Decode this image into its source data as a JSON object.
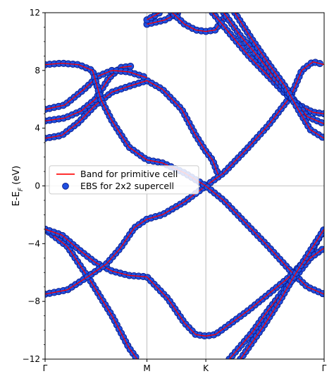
{
  "chart_data": {
    "type": "scatter",
    "ylabel_main": "E-E",
    "ylabel_sub": "F",
    "ylabel_unit": " (eV)",
    "ylim": [
      -12,
      12
    ],
    "yticks": [
      12,
      8,
      4,
      0,
      -4,
      -8,
      -12
    ],
    "xlim": [
      0,
      1
    ],
    "xticks": [
      {
        "label": "Γ",
        "x": 0.0
      },
      {
        "label": "M",
        "x": 0.365
      },
      {
        "label": "K",
        "x": 0.576
      },
      {
        "label": "Γ",
        "x": 1.0
      }
    ],
    "zero_line": 0,
    "legend": {
      "placement": "center-left",
      "entries": [
        {
          "label": "Band for primitive cell",
          "marker": "line",
          "color": "#ff0000"
        },
        {
          "label": "EBS for 2x2 supercell",
          "marker": "circle",
          "color": "#1f3fd6"
        }
      ]
    },
    "colors": {
      "band_line": "#ff0000",
      "ebs_face": "#1f4fe0",
      "ebs_edge": "#0a1a8a"
    },
    "series": [
      {
        "points": [
          [
            0.0,
            -3.0
          ],
          [
            0.08,
            -4.2
          ],
          [
            0.16,
            -6.5
          ],
          [
            0.24,
            -9.0
          ],
          [
            0.3,
            -11.2
          ],
          [
            0.33,
            -12.0
          ]
        ]
      },
      {
        "points": [
          [
            0.0,
            -3.0
          ],
          [
            0.06,
            -3.4
          ],
          [
            0.12,
            -4.4
          ],
          [
            0.18,
            -5.3
          ],
          [
            0.24,
            -5.9
          ],
          [
            0.3,
            -6.2
          ],
          [
            0.365,
            -6.3
          ],
          [
            0.44,
            -7.8
          ],
          [
            0.5,
            -9.5
          ],
          [
            0.54,
            -10.3
          ],
          [
            0.576,
            -10.4
          ],
          [
            0.61,
            -10.3
          ],
          [
            0.66,
            -9.6
          ],
          [
            0.73,
            -8.6
          ],
          [
            0.8,
            -7.5
          ],
          [
            0.87,
            -6.4
          ],
          [
            0.94,
            -5.0
          ],
          [
            1.0,
            -3.0
          ]
        ]
      },
      {
        "points": [
          [
            0.0,
            -7.5
          ],
          [
            0.08,
            -7.2
          ],
          [
            0.16,
            -6.2
          ],
          [
            0.22,
            -5.4
          ],
          [
            0.27,
            -4.3
          ],
          [
            0.32,
            -2.9
          ],
          [
            0.365,
            -2.3
          ],
          [
            0.42,
            -2.0
          ],
          [
            0.5,
            -1.1
          ],
          [
            0.576,
            0.0
          ],
          [
            0.64,
            0.9
          ],
          [
            0.72,
            2.5
          ],
          [
            0.8,
            4.2
          ],
          [
            0.88,
            6.2
          ],
          [
            0.92,
            8.0
          ],
          [
            0.96,
            8.6
          ],
          [
            1.0,
            8.4
          ]
        ]
      },
      {
        "points": [
          [
            0.0,
            3.3
          ],
          [
            0.06,
            3.5
          ],
          [
            0.12,
            4.4
          ],
          [
            0.18,
            5.6
          ],
          [
            0.24,
            6.5
          ],
          [
            0.3,
            6.9
          ],
          [
            0.365,
            7.3
          ],
          [
            0.42,
            6.7
          ],
          [
            0.49,
            5.3
          ],
          [
            0.54,
            3.5
          ],
          [
            0.576,
            2.4
          ],
          [
            0.6,
            1.8
          ],
          [
            0.62,
            0.8
          ]
        ]
      },
      {
        "points": [
          [
            0.0,
            4.5
          ],
          [
            0.07,
            4.7
          ],
          [
            0.13,
            5.2
          ],
          [
            0.18,
            6.0
          ],
          [
            0.23,
            7.5
          ],
          [
            0.27,
            8.2
          ],
          [
            0.31,
            8.3
          ]
        ]
      },
      {
        "points": [
          [
            0.0,
            5.3
          ],
          [
            0.07,
            5.6
          ],
          [
            0.14,
            6.7
          ],
          [
            0.19,
            7.6
          ],
          [
            0.24,
            8.0
          ],
          [
            0.3,
            7.9
          ],
          [
            0.365,
            7.5
          ]
        ]
      },
      {
        "points": [
          [
            0.0,
            8.4
          ],
          [
            0.06,
            8.5
          ],
          [
            0.12,
            8.4
          ],
          [
            0.17,
            8.0
          ],
          [
            0.2,
            6.0
          ],
          [
            0.24,
            4.5
          ],
          [
            0.3,
            2.7
          ],
          [
            0.365,
            1.8
          ],
          [
            0.42,
            1.6
          ],
          [
            0.5,
            0.9
          ],
          [
            0.576,
            0.0
          ],
          [
            0.64,
            -1.0
          ],
          [
            0.72,
            -2.6
          ],
          [
            0.8,
            -4.2
          ],
          [
            0.88,
            -5.9
          ],
          [
            0.94,
            -7.0
          ],
          [
            1.0,
            -7.5
          ]
        ]
      },
      {
        "points": [
          [
            0.365,
            11.2
          ],
          [
            0.43,
            11.5
          ],
          [
            0.48,
            12.0
          ]
        ]
      },
      {
        "points": [
          [
            0.365,
            11.5
          ],
          [
            0.42,
            12.1
          ]
        ]
      },
      {
        "points": [
          [
            0.45,
            12.1
          ],
          [
            0.5,
            11.2
          ],
          [
            0.54,
            10.8
          ],
          [
            0.576,
            10.7
          ],
          [
            0.61,
            10.8
          ],
          [
            0.64,
            11.6
          ]
        ]
      },
      {
        "points": [
          [
            0.6,
            12.0
          ],
          [
            0.66,
            10.6
          ],
          [
            0.73,
            9.0
          ],
          [
            0.8,
            7.6
          ],
          [
            0.86,
            6.4
          ],
          [
            0.91,
            5.6
          ],
          [
            0.96,
            5.1
          ],
          [
            1.0,
            5.0
          ]
        ]
      },
      {
        "points": [
          [
            0.64,
            12.0
          ],
          [
            0.7,
            10.4
          ],
          [
            0.77,
            8.8
          ],
          [
            0.83,
            7.3
          ],
          [
            0.89,
            6.0
          ],
          [
            0.94,
            4.8
          ],
          [
            1.0,
            4.3
          ]
        ]
      },
      {
        "points": [
          [
            0.68,
            12.0
          ],
          [
            0.74,
            10.2
          ],
          [
            0.8,
            8.5
          ],
          [
            0.86,
            6.9
          ],
          [
            0.91,
            5.2
          ],
          [
            0.95,
            3.9
          ],
          [
            1.0,
            3.3
          ]
        ]
      },
      {
        "points": [
          [
            0.66,
            -12.0
          ],
          [
            0.74,
            -10.2
          ],
          [
            0.8,
            -8.6
          ],
          [
            0.86,
            -7.1
          ],
          [
            0.91,
            -6.0
          ],
          [
            0.95,
            -5.0
          ],
          [
            1.0,
            -4.3
          ]
        ]
      },
      {
        "points": [
          [
            0.7,
            -12.0
          ],
          [
            0.78,
            -9.8
          ],
          [
            0.84,
            -8.0
          ],
          [
            0.9,
            -6.0
          ],
          [
            0.95,
            -4.5
          ],
          [
            1.0,
            -3.0
          ]
        ]
      }
    ]
  }
}
